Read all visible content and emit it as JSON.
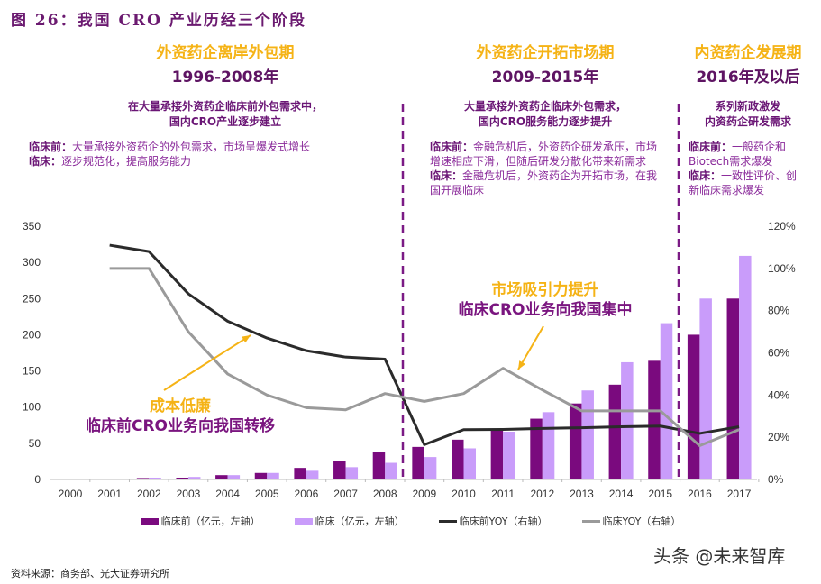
{
  "figure_title": "图 26：我国 CRO 产业历经三个阶段",
  "phases": [
    {
      "name": "外资药企离岸外包期",
      "years": "1996-2008年",
      "summary": [
        "在大量承接外资药企临床前外包需求中，",
        "国内CRO产业逐步建立"
      ],
      "desc": [
        {
          "label": "临床前：",
          "text": "大量承接外资药企的外包需求，市场呈爆发式增长"
        },
        {
          "label": "临床：",
          "text": "逐步规范化，提高服务能力"
        }
      ]
    },
    {
      "name": "外资药企开拓市场期",
      "years": "2009-2015年",
      "summary": [
        "大量承接外资药企临床外包需求，",
        "国内CRO服务能力逐步提升"
      ],
      "desc": [
        {
          "label": "临床前：",
          "text": "金融危机后，外资药企研发承压，市场增速相应下滑，但随后研发分散化带来新需求"
        },
        {
          "label": "临床：",
          "text": "金融危机后，外资药企为开拓市场，在我国开展临床"
        }
      ]
    },
    {
      "name": "内资药企发展期",
      "years": "2016年及以后",
      "summary": [
        "系列新政激发",
        "内资药企研发需求"
      ],
      "desc": [
        {
          "label": "临床前：",
          "text": "一般药企和Biotech需求爆发"
        },
        {
          "label": "临床：",
          "text": "一致性评价、创新临床需求爆发"
        }
      ]
    }
  ],
  "annotations": [
    {
      "line1": "成本低廉",
      "line2": "临床前CRO业务向我国转移"
    },
    {
      "line1": "市场吸引力提升",
      "line2": "临床CRO业务向我国集中"
    }
  ],
  "colors": {
    "preclinical": "#7a0a7e",
    "clinical": "#c99cfa",
    "preclinical_yoy": "#2b2b2b",
    "clinical_yoy": "#9a9a9a",
    "divider": "#7b1a85",
    "arrow": "#f5b316"
  },
  "chart_data": {
    "type": "bar+line",
    "categories": [
      "2000",
      "2001",
      "2002",
      "2003",
      "2004",
      "2005",
      "2006",
      "2007",
      "2008",
      "2009",
      "2010",
      "2011",
      "2012",
      "2013",
      "2014",
      "2015",
      "2016",
      "2017"
    ],
    "left_axis": {
      "range": [
        0,
        350
      ],
      "ticks": [
        "0",
        "50",
        "100",
        "150",
        "200",
        "250",
        "300",
        "350"
      ]
    },
    "right_axis": {
      "range": [
        0,
        120
      ],
      "ticks": [
        "0%",
        "20%",
        "40%",
        "60%",
        "80%",
        "100%",
        "120%"
      ]
    },
    "series": [
      {
        "name": "临床前（亿元，左轴）",
        "type": "bar",
        "axis": "left",
        "values": [
          1,
          1,
          2,
          2.5,
          6,
          9,
          16,
          25,
          38,
          45,
          55,
          69,
          84,
          105,
          131,
          164,
          200,
          250
        ]
      },
      {
        "name": "临床（亿元，左轴）",
        "type": "bar",
        "axis": "left",
        "values": [
          1,
          1,
          2.5,
          3.5,
          6,
          9,
          12,
          17,
          23,
          31,
          43,
          66,
          93,
          123,
          162,
          216,
          250,
          309
        ]
      },
      {
        "name": "临床前YOY（右轴）",
        "type": "line",
        "axis": "right",
        "values": [
          null,
          111,
          108,
          88,
          75,
          67,
          61,
          58,
          57,
          16.5,
          23.6,
          23.7,
          24.2,
          24.5,
          25,
          25.3,
          21.8,
          25
        ]
      },
      {
        "name": "临床YOY（右轴）",
        "type": "line",
        "axis": "right",
        "values": [
          null,
          100,
          100,
          70,
          50,
          40,
          34,
          33,
          40.7,
          37,
          40.7,
          52.7,
          42.4,
          32.5,
          32.5,
          32.5,
          16,
          23.6
        ]
      }
    ],
    "grid": false,
    "legend_position": "bottom"
  },
  "source": "资料来源：商务部、光大证券研究所",
  "watermark": "头条 @未来智库"
}
